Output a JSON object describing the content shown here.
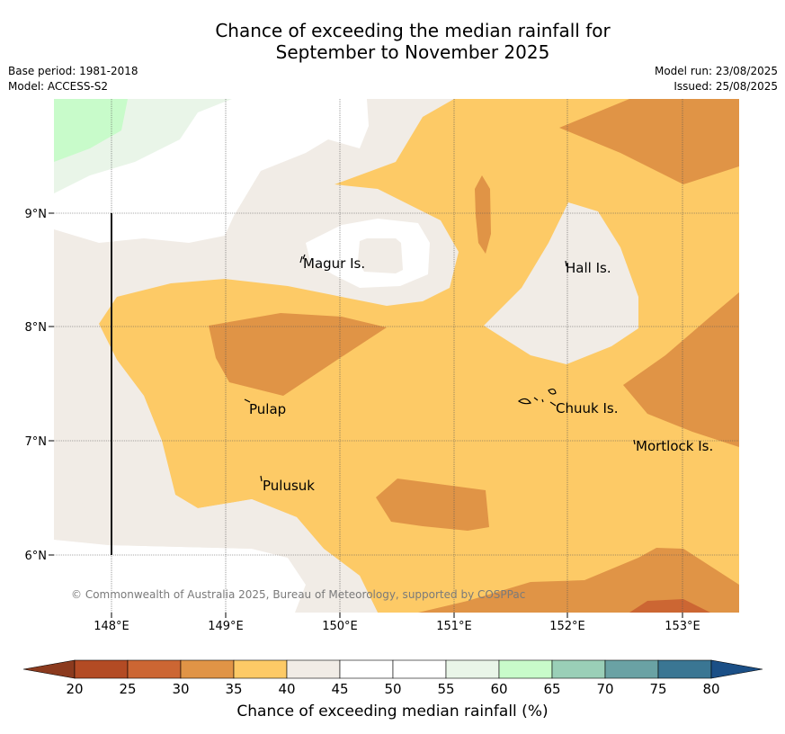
{
  "title": {
    "line1": "Chance of exceeding the median rainfall for",
    "line2": "September to November 2025"
  },
  "meta": {
    "base_period": "Base period: 1981-2018",
    "model": "Model: ACCESS-S2",
    "model_run": "Model run: 23/08/2025",
    "issued": "Issued: 25/08/2025"
  },
  "map": {
    "x_ticks": [
      "148°E",
      "149°E",
      "150°E",
      "151°E",
      "152°E",
      "153°E"
    ],
    "y_ticks": [
      "9°N",
      "8°N",
      "7°N",
      "6°N"
    ],
    "places": [
      "Magur Is.",
      "Hall Is.",
      "Pulap",
      "Chuuk Is.",
      "Mortlock Is.",
      "Pulusuk"
    ],
    "copyright": "© Commonwealth of Australia 2025, Bureau of Meteorology, supported by COSPPac"
  },
  "colorbar": {
    "label": "Chance of exceeding median rainfall (%)",
    "ticks": [
      "20",
      "25",
      "30",
      "35",
      "40",
      "45",
      "50",
      "55",
      "60",
      "65",
      "70",
      "75",
      "80"
    ],
    "colors": {
      "below20": "#8b3a1e",
      "20-25": "#b34b24",
      "25-30": "#cc6633",
      "30-35": "#e09446",
      "35-40": "#fdca66",
      "40-45": "#f1ece6",
      "45-50": "#ffffff",
      "50-55": "#ffffff",
      "55-60": "#e9f5e8",
      "60-65": "#c8fbca",
      "65-70": "#9acfb7",
      "70-75": "#6aa2a4",
      "75-80": "#3a7693",
      "above80": "#1b4f86"
    }
  }
}
